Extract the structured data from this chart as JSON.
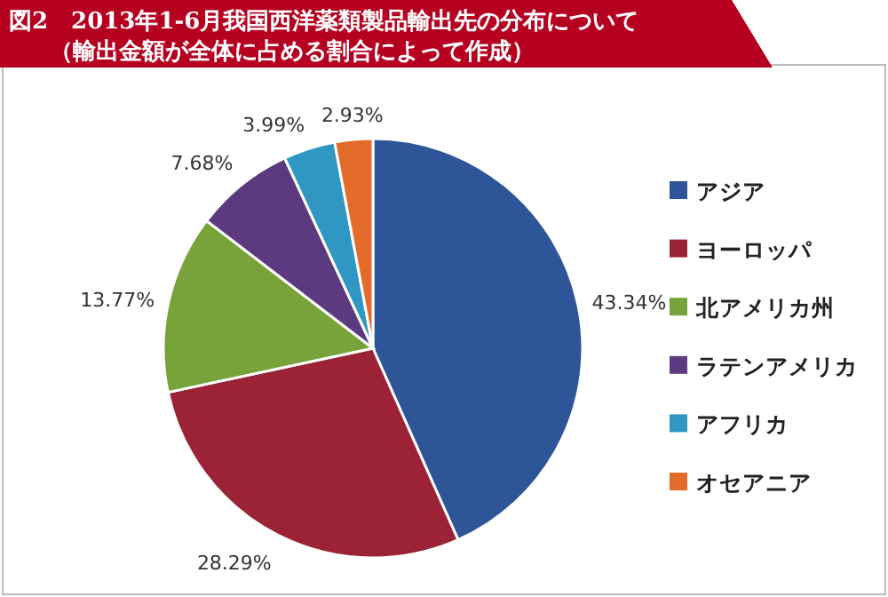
{
  "chart_data": {
    "type": "pie",
    "title": "図2　2013年1-6月我国西洋薬類製品輸出先の分布について",
    "subtitle": "（輸出金額が全体に占める割合によって作成）",
    "categories": [
      "アジア",
      "ヨーロッパ",
      "北アメリカ州",
      "ラテンアメリカ",
      "アフリカ",
      "オセアニア"
    ],
    "values": [
      43.34,
      28.29,
      13.77,
      7.68,
      3.99,
      2.93
    ],
    "colors": [
      "#2e5597",
      "#9b2335",
      "#77a33a",
      "#5b3a7f",
      "#2f97c1",
      "#e46c2a"
    ],
    "value_labels": [
      "43.34%",
      "28.29%",
      "13.77%",
      "7.68%",
      "3.99%",
      "2.93%"
    ],
    "legend": "right"
  }
}
